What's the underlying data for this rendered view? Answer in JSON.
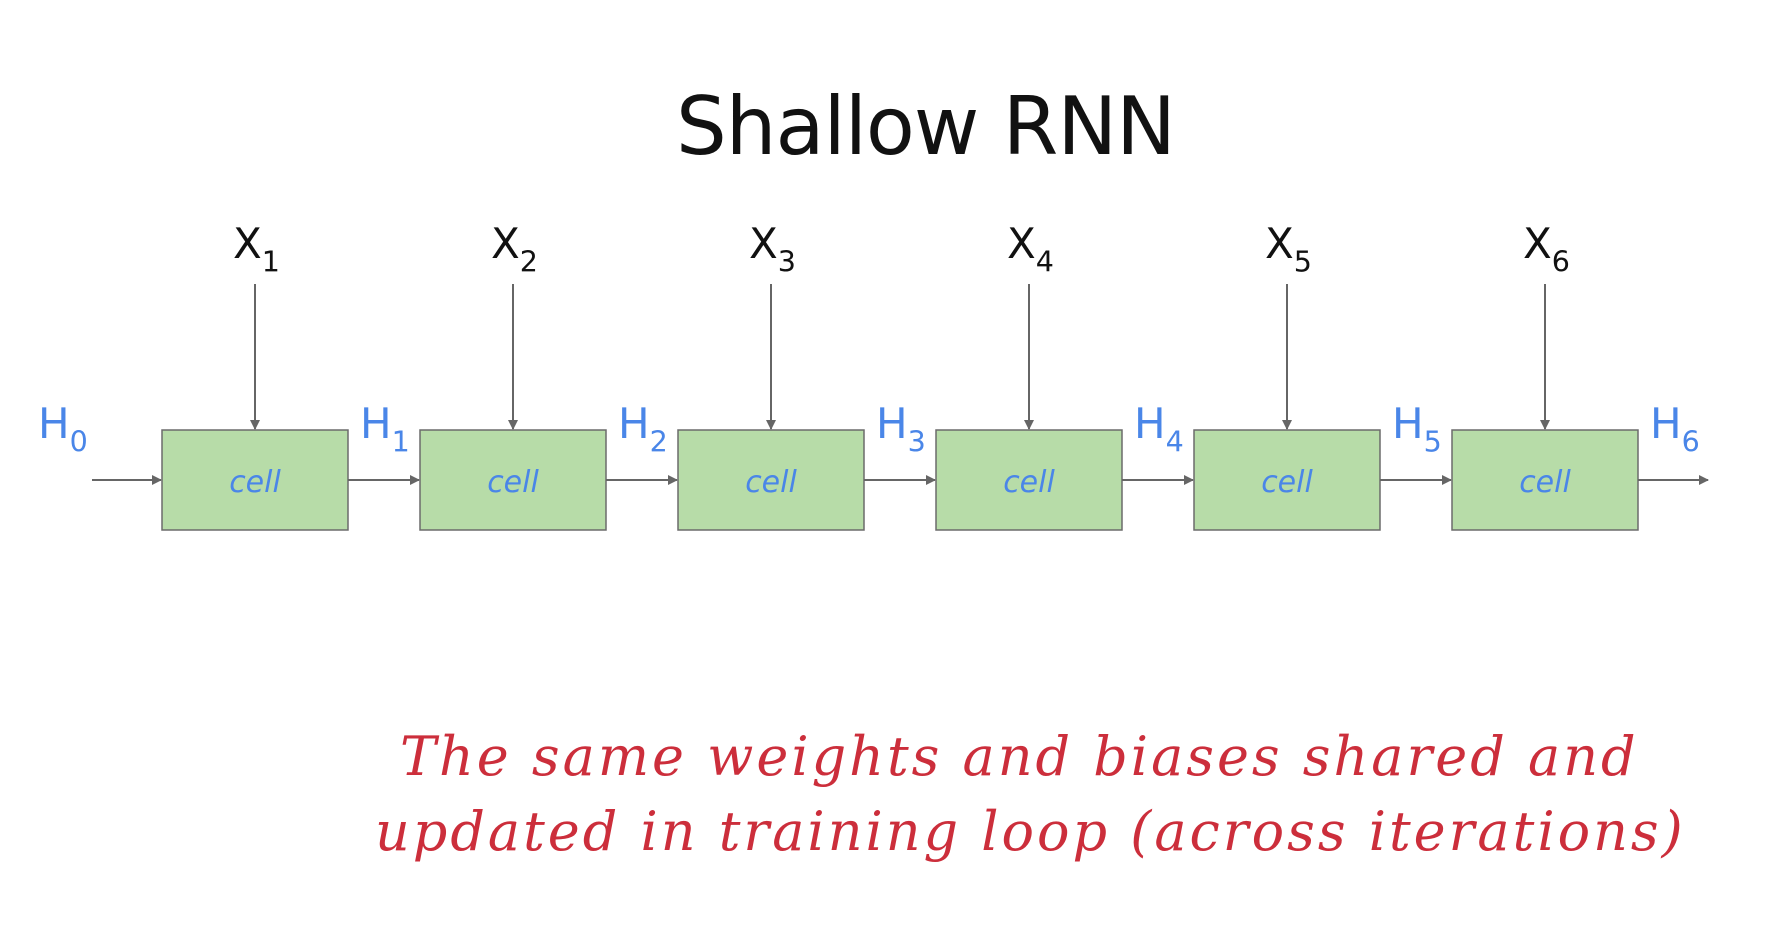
{
  "title": "Shallow RNN",
  "inputs": [
    {
      "base": "X",
      "sub": "1"
    },
    {
      "base": "X",
      "sub": "2"
    },
    {
      "base": "X",
      "sub": "3"
    },
    {
      "base": "X",
      "sub": "4"
    },
    {
      "base": "X",
      "sub": "5"
    },
    {
      "base": "X",
      "sub": "6"
    }
  ],
  "hidden_states": [
    {
      "base": "H",
      "sub": "0"
    },
    {
      "base": "H",
      "sub": "1"
    },
    {
      "base": "H",
      "sub": "2"
    },
    {
      "base": "H",
      "sub": "3"
    },
    {
      "base": "H",
      "sub": "4"
    },
    {
      "base": "H",
      "sub": "5"
    },
    {
      "base": "H",
      "sub": "6"
    }
  ],
  "cell_label": "cell",
  "annotation": {
    "line1": "The same weights and biases shared and",
    "line2": "updated in training loop (across iterations)"
  },
  "colors": {
    "cell_fill": "#b7dca8",
    "cell_border": "#6b6b6b",
    "hidden_label": "#4a86e8",
    "cell_text": "#4a86e8",
    "arrow": "#666666",
    "annotation": "#cc2e3b",
    "title": "#111111"
  }
}
